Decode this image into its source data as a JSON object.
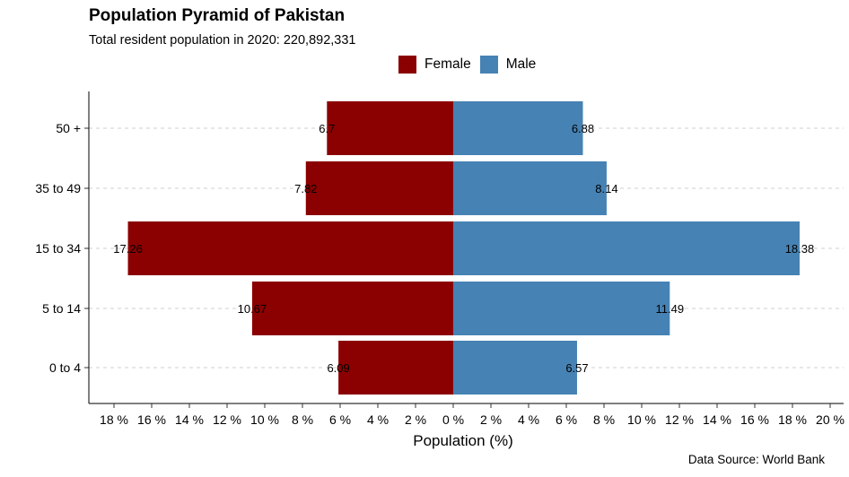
{
  "chart_data": {
    "type": "bar",
    "orientation": "horizontal-diverging",
    "title": "Population Pyramid of Pakistan",
    "subtitle": "Total resident population in 2020: 220,892,331",
    "xlabel": "Population (%)",
    "ylabel": "",
    "caption": "Data Source: World Bank",
    "categories": [
      "0 to 4",
      "5 to 14",
      "15 to 34",
      "35 to 49",
      "50 +"
    ],
    "series": [
      {
        "name": "Female",
        "color": "#8B0000",
        "values": [
          6.09,
          10.67,
          17.26,
          7.82,
          6.7
        ],
        "labels": [
          "6.09",
          "10.67",
          "17.26",
          "7.82",
          "6.7"
        ]
      },
      {
        "name": "Male",
        "color": "#4682B4",
        "values": [
          6.57,
          11.49,
          18.38,
          8.14,
          6.88
        ],
        "labels": [
          "6.57",
          "11.49",
          "18.38",
          "8.14",
          "6.88"
        ]
      }
    ],
    "xlim": [
      -18,
      20
    ],
    "x_ticks": [
      -18,
      -16,
      -14,
      -12,
      -10,
      -8,
      -6,
      -4,
      -2,
      0,
      2,
      4,
      6,
      8,
      10,
      12,
      14,
      16,
      18,
      20
    ],
    "x_tick_labels": [
      "18 %",
      "16 %",
      "14 %",
      "12 %",
      "10 %",
      "8 %",
      "6 %",
      "4 %",
      "2 %",
      "0 %",
      "2 %",
      "4 %",
      "6 %",
      "8 %",
      "10 %",
      "12 %",
      "14 %",
      "16 %",
      "18 %",
      "20 %"
    ],
    "grid": "horizontal dashed",
    "legend_position": "top"
  }
}
